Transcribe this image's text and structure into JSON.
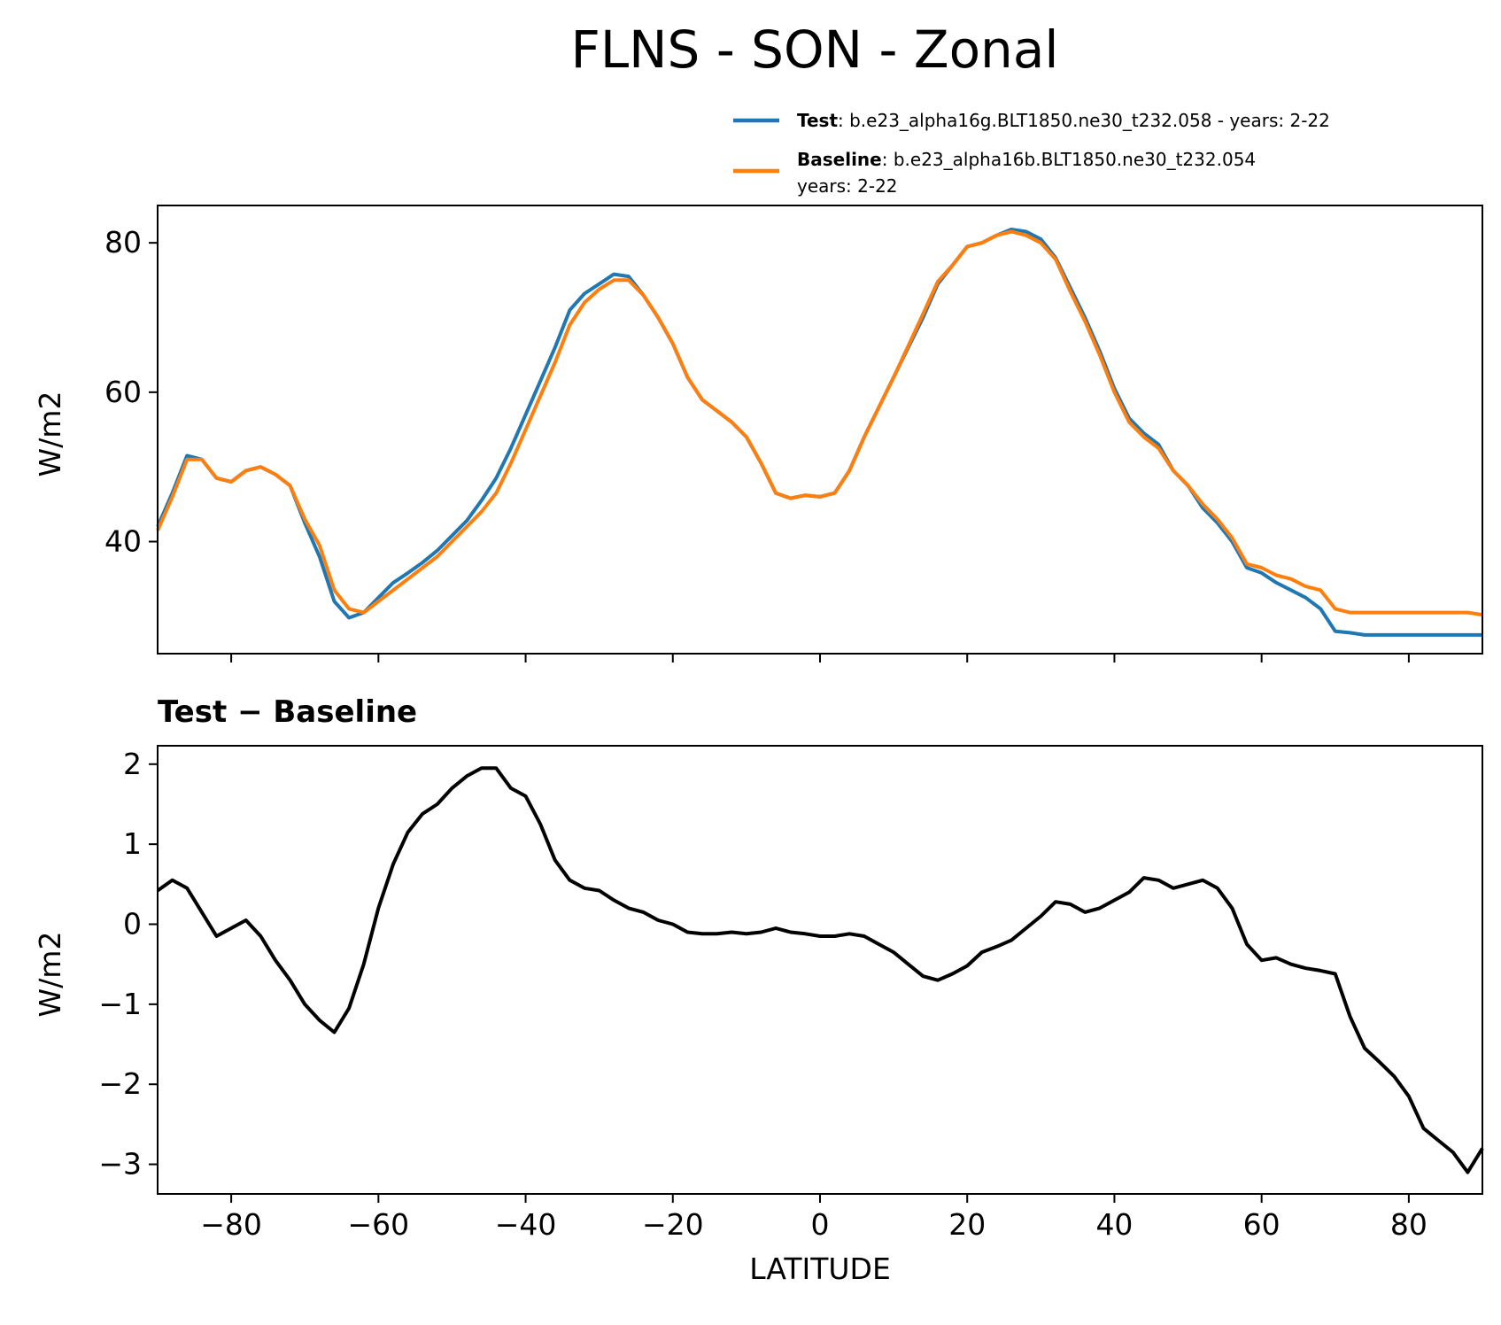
{
  "figure": {
    "title": "FLNS - SON - Zonal"
  },
  "legend": {
    "entries": [
      {
        "label": "Test",
        "desc": ": b.e23_alpha16g.BLT1850.ne30_t232.058 - years: 2-22",
        "desc2": "",
        "color": "#1f77b4"
      },
      {
        "label": "Baseline",
        "desc": ": b.e23_alpha16b.BLT1850.ne30_t232.054",
        "desc2": "years: 2-22",
        "color": "#ff7f0e"
      }
    ]
  },
  "chart_data": [
    {
      "type": "line",
      "title": "",
      "xlabel": "",
      "ylabel": "W/m2",
      "xlim": [
        -90,
        90
      ],
      "ylim": [
        25,
        85
      ],
      "xticks": [
        -80,
        -60,
        -40,
        -20,
        0,
        20,
        40,
        60,
        80
      ],
      "yticks": [
        40,
        60,
        80
      ],
      "xtick_labels_visible": false,
      "grid": false,
      "legend_position": "above-right",
      "x": [
        -90,
        -88,
        -86,
        -84,
        -82,
        -80,
        -78,
        -76,
        -74,
        -72,
        -70,
        -68,
        -66,
        -64,
        -62,
        -60,
        -58,
        -56,
        -54,
        -52,
        -50,
        -48,
        -46,
        -44,
        -42,
        -40,
        -38,
        -36,
        -34,
        -32,
        -30,
        -28,
        -26,
        -24,
        -22,
        -20,
        -18,
        -16,
        -14,
        -12,
        -10,
        -8,
        -6,
        -4,
        -2,
        0,
        2,
        4,
        6,
        8,
        10,
        12,
        14,
        16,
        18,
        20,
        22,
        24,
        26,
        28,
        30,
        32,
        34,
        36,
        38,
        40,
        42,
        44,
        46,
        48,
        50,
        52,
        54,
        56,
        58,
        60,
        62,
        64,
        66,
        68,
        70,
        72,
        74,
        76,
        78,
        80,
        82,
        84,
        86,
        88,
        90
      ],
      "series": [
        {
          "name": "Test",
          "color": "#1f77b4",
          "values": [
            42,
            46.5,
            51.5,
            51,
            48.5,
            48,
            49.5,
            50,
            49,
            47.5,
            42.5,
            38,
            32,
            29.8,
            30.5,
            32.5,
            34.5,
            35.8,
            37.2,
            38.8,
            40.8,
            42.8,
            45.5,
            48.5,
            52.5,
            57,
            61.5,
            66,
            71,
            73.2,
            74.5,
            75.8,
            75.5,
            73,
            70,
            66.5,
            62,
            59,
            57.5,
            56,
            54,
            50.5,
            46.5,
            45.8,
            46.2,
            46,
            46.5,
            49.5,
            54,
            58,
            62,
            66,
            70,
            74.5,
            77,
            79.5,
            80,
            81,
            81.8,
            81.5,
            80.5,
            78,
            74,
            70,
            65.5,
            60.5,
            56.5,
            54.5,
            53,
            49.5,
            47.5,
            44.5,
            42.5,
            40,
            36.5,
            35.8,
            34.5,
            33.5,
            32.5,
            31,
            28,
            27.8,
            27.5,
            27.5,
            27.5,
            27.5,
            27.5,
            27.5,
            27.5,
            27.5,
            27.5
          ]
        },
        {
          "name": "Baseline",
          "color": "#ff7f0e",
          "values": [
            41.5,
            46,
            51,
            51,
            48.5,
            48,
            49.5,
            50,
            49,
            47.5,
            43,
            39.5,
            33.5,
            31,
            30.5,
            32,
            33.5,
            35,
            36.5,
            38,
            40,
            42,
            44,
            46.5,
            50.5,
            55,
            59.5,
            64,
            69,
            72,
            73.8,
            75,
            75,
            73,
            70,
            66.5,
            62,
            59,
            57.5,
            56,
            54,
            50.5,
            46.5,
            45.8,
            46.2,
            46,
            46.5,
            49.5,
            54,
            58,
            62,
            66.2,
            70.5,
            74.8,
            77,
            79.5,
            80,
            81,
            81.5,
            81,
            80,
            77.8,
            73.5,
            69.5,
            65,
            60,
            56,
            54,
            52.5,
            49.5,
            47.5,
            45,
            43,
            40.5,
            37,
            36.5,
            35.5,
            35,
            34,
            33.5,
            31,
            30.5,
            30.5,
            30.5,
            30.5,
            30.5,
            30.5,
            30.5,
            30.5,
            30.5,
            30.2
          ]
        }
      ]
    },
    {
      "type": "line",
      "title": "Test − Baseline",
      "xlabel": "LATITUDE",
      "ylabel": "W/m2",
      "xlim": [
        -90,
        90
      ],
      "ylim": [
        -3.37,
        2.23
      ],
      "xticks": [
        -80,
        -60,
        -40,
        -20,
        0,
        20,
        40,
        60,
        80
      ],
      "xtick_labels": [
        "−80",
        "−60",
        "−40",
        "−20",
        "0",
        "20",
        "40",
        "60",
        "80"
      ],
      "yticks": [
        -3,
        -2,
        -1,
        0,
        1,
        2
      ],
      "ytick_labels": [
        "−3",
        "−2",
        "−1",
        "0",
        "1",
        "2"
      ],
      "grid": false,
      "x": [
        -90,
        -88,
        -86,
        -84,
        -82,
        -80,
        -78,
        -76,
        -74,
        -72,
        -70,
        -68,
        -66,
        -64,
        -62,
        -60,
        -58,
        -56,
        -54,
        -52,
        -50,
        -48,
        -46,
        -44,
        -42,
        -40,
        -38,
        -36,
        -34,
        -32,
        -30,
        -28,
        -26,
        -24,
        -22,
        -20,
        -18,
        -16,
        -14,
        -12,
        -10,
        -8,
        -6,
        -4,
        -2,
        0,
        2,
        4,
        6,
        8,
        10,
        12,
        14,
        16,
        18,
        20,
        22,
        24,
        26,
        28,
        30,
        32,
        34,
        36,
        38,
        40,
        42,
        44,
        46,
        48,
        50,
        52,
        54,
        56,
        58,
        60,
        62,
        64,
        66,
        68,
        70,
        72,
        74,
        76,
        78,
        80,
        82,
        84,
        86,
        88,
        90
      ],
      "series": [
        {
          "name": "",
          "color": "#000000",
          "values": [
            0.42,
            0.55,
            0.45,
            0.15,
            -0.15,
            -0.05,
            0.05,
            -0.15,
            -0.45,
            -0.7,
            -1.0,
            -1.2,
            -1.35,
            -1.05,
            -0.5,
            0.2,
            0.75,
            1.15,
            1.38,
            1.5,
            1.7,
            1.85,
            1.95,
            1.95,
            1.7,
            1.6,
            1.25,
            0.8,
            0.55,
            0.45,
            0.42,
            0.3,
            0.2,
            0.15,
            0.05,
            0.0,
            -0.1,
            -0.12,
            -0.12,
            -0.1,
            -0.12,
            -0.1,
            -0.05,
            -0.1,
            -0.12,
            -0.15,
            -0.15,
            -0.12,
            -0.15,
            -0.25,
            -0.35,
            -0.5,
            -0.65,
            -0.7,
            -0.62,
            -0.52,
            -0.35,
            -0.28,
            -0.2,
            -0.05,
            0.1,
            0.28,
            0.25,
            0.15,
            0.2,
            0.3,
            0.4,
            0.58,
            0.55,
            0.45,
            0.5,
            0.55,
            0.45,
            0.2,
            -0.25,
            -0.45,
            -0.42,
            -0.5,
            -0.55,
            -0.58,
            -0.62,
            -1.15,
            -1.55,
            -1.72,
            -1.9,
            -2.15,
            -2.55,
            -2.7,
            -2.85,
            -3.1,
            -2.8
          ]
        }
      ]
    }
  ]
}
